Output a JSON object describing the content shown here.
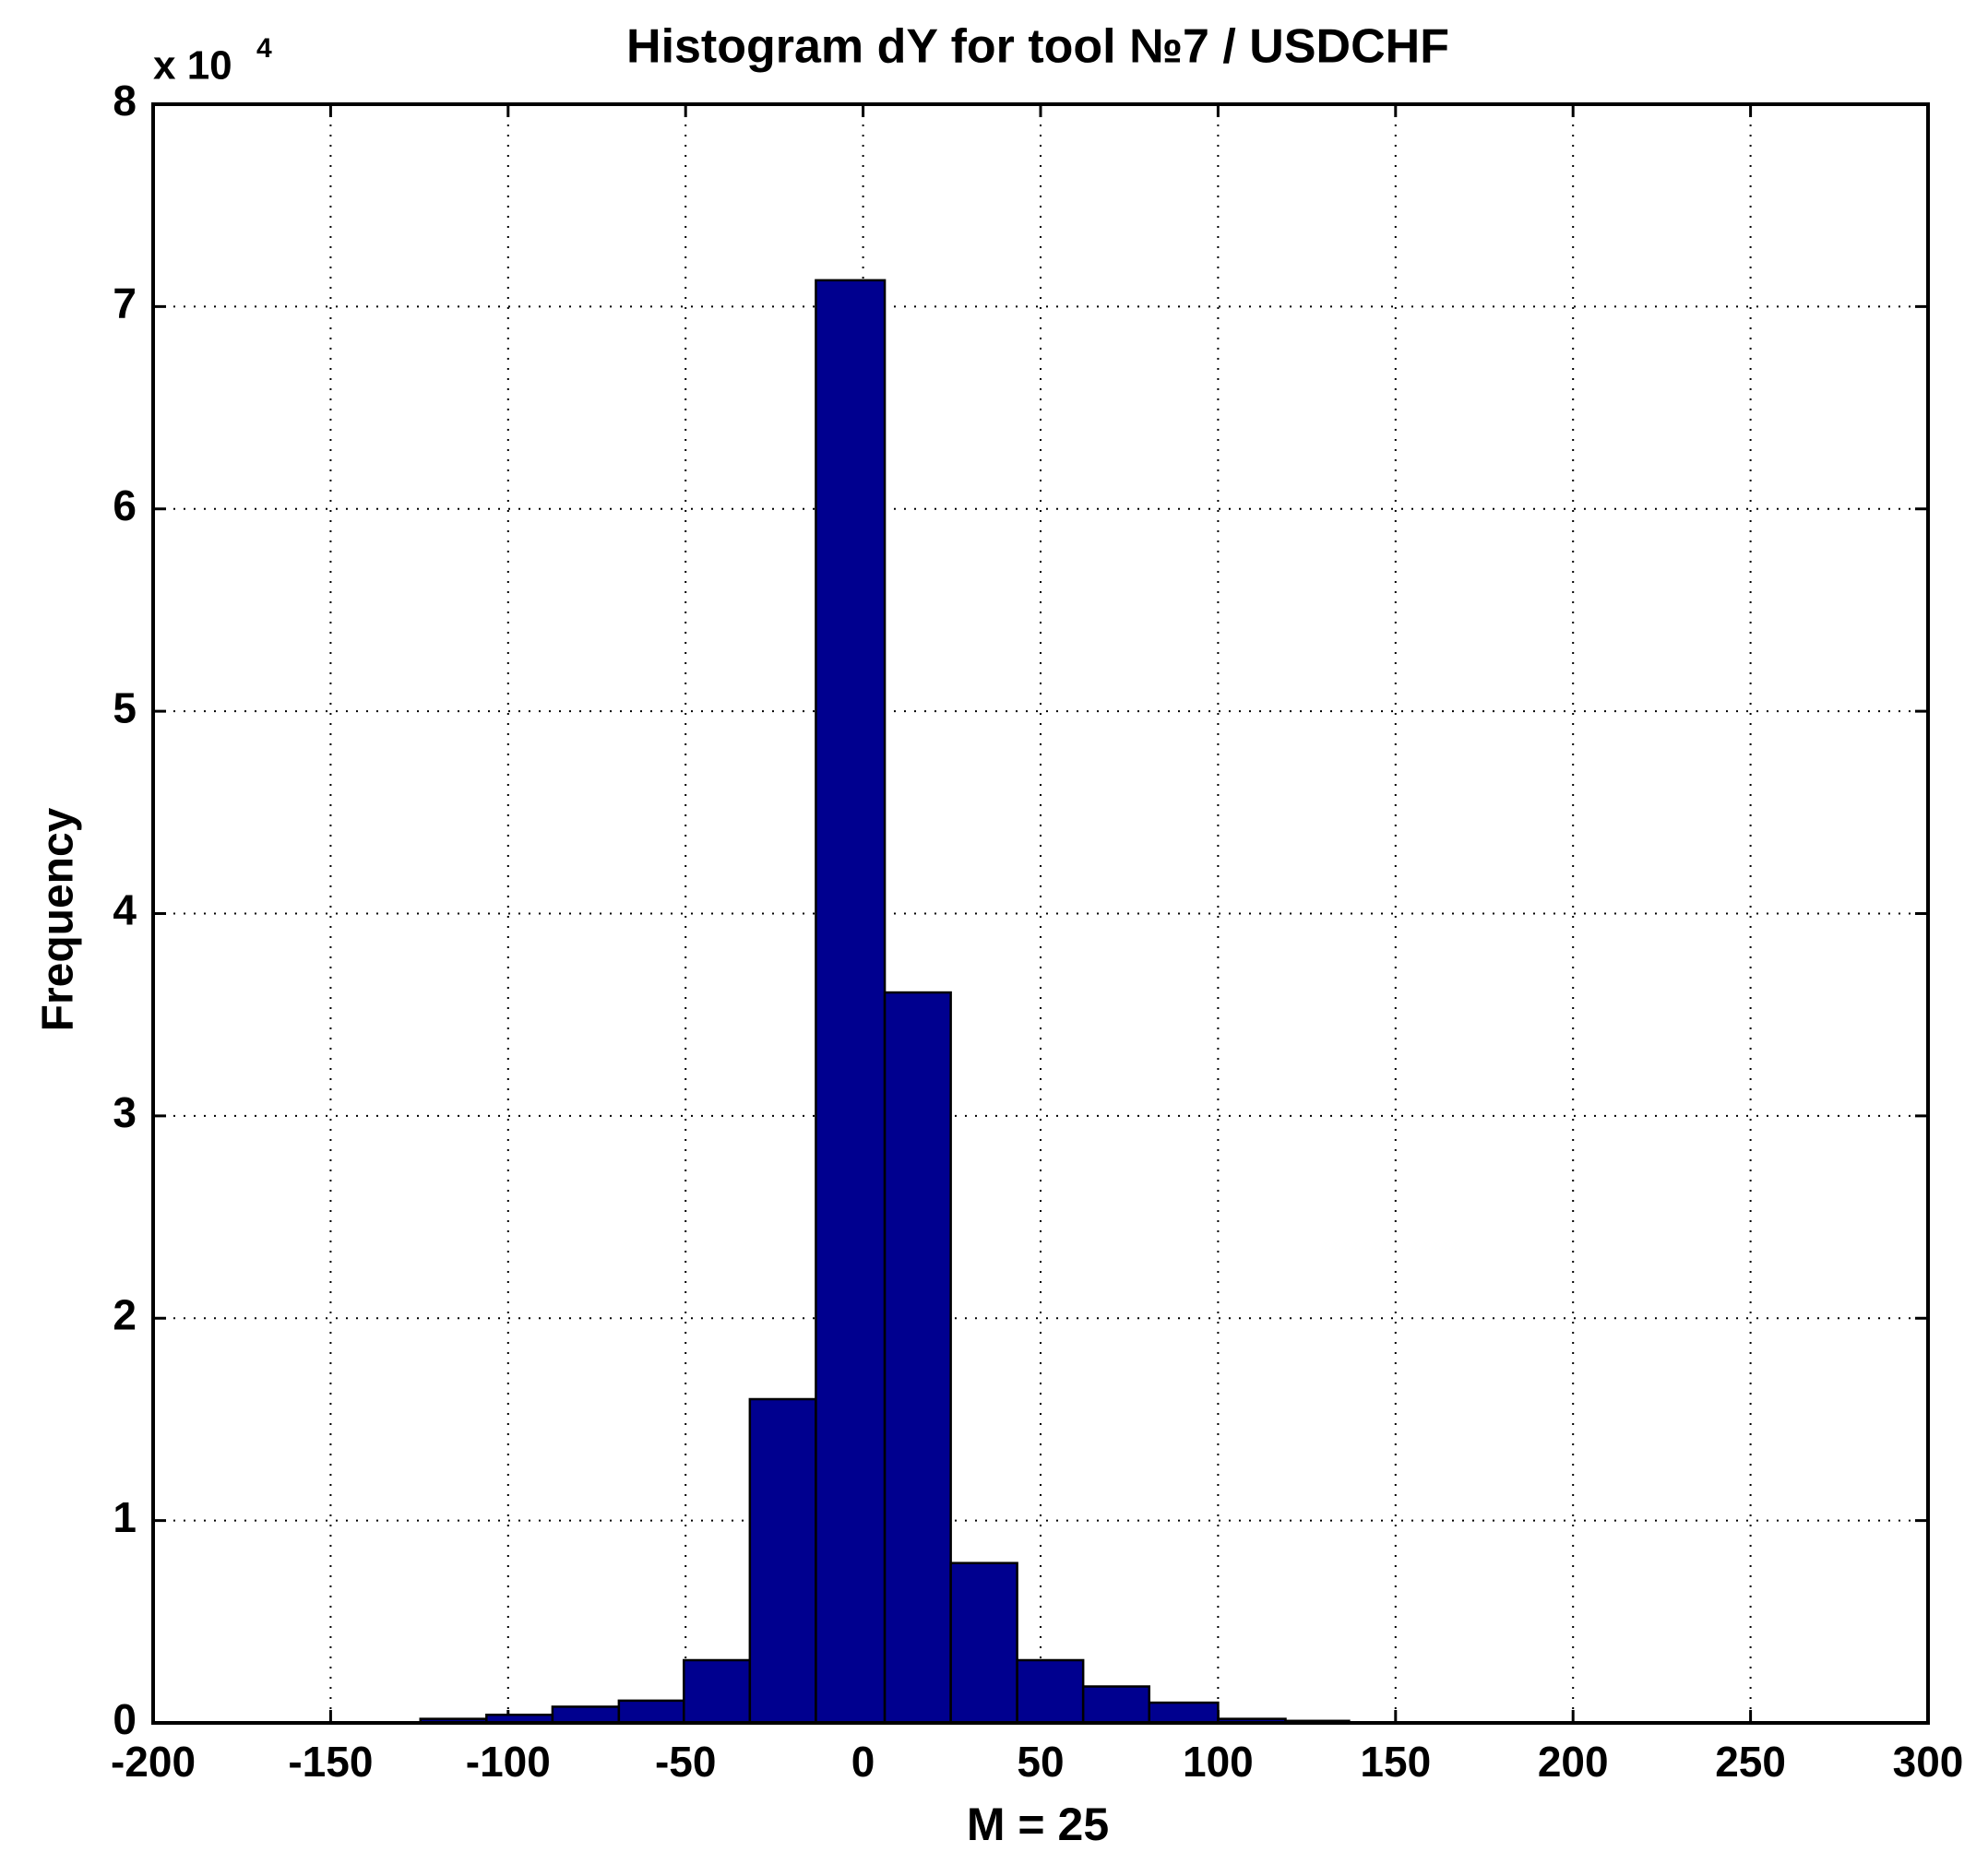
{
  "chart_data": {
    "type": "histogram",
    "title": "Histogram dY for tool  №7 / USDCHF",
    "x_label": "M = 25",
    "y_label": "Frequency",
    "y_scale": {
      "base": "x 10",
      "exponent": "4"
    },
    "bins": [
      -124.7,
      -106.1,
      -87.5,
      -68.8,
      -50.5,
      -31.9,
      -13.3,
      6.1,
      24.7,
      43.4,
      62.0,
      80.6,
      100.0,
      119.0,
      136.9
    ],
    "values": [
      0.02,
      0.04,
      0.08,
      0.11,
      0.31,
      1.6,
      7.13,
      3.61,
      0.79,
      0.31,
      0.18,
      0.1,
      0.02,
      0.01
    ],
    "color": "#00008f",
    "xlim": [
      -200,
      300
    ],
    "xticks": [
      -200,
      -150,
      -100,
      -50,
      0,
      50,
      100,
      150,
      200,
      250,
      300
    ],
    "ylim": [
      0,
      8
    ],
    "yticks": [
      0,
      1,
      2,
      3,
      4,
      5,
      6,
      7,
      8
    ],
    "grid": true
  }
}
